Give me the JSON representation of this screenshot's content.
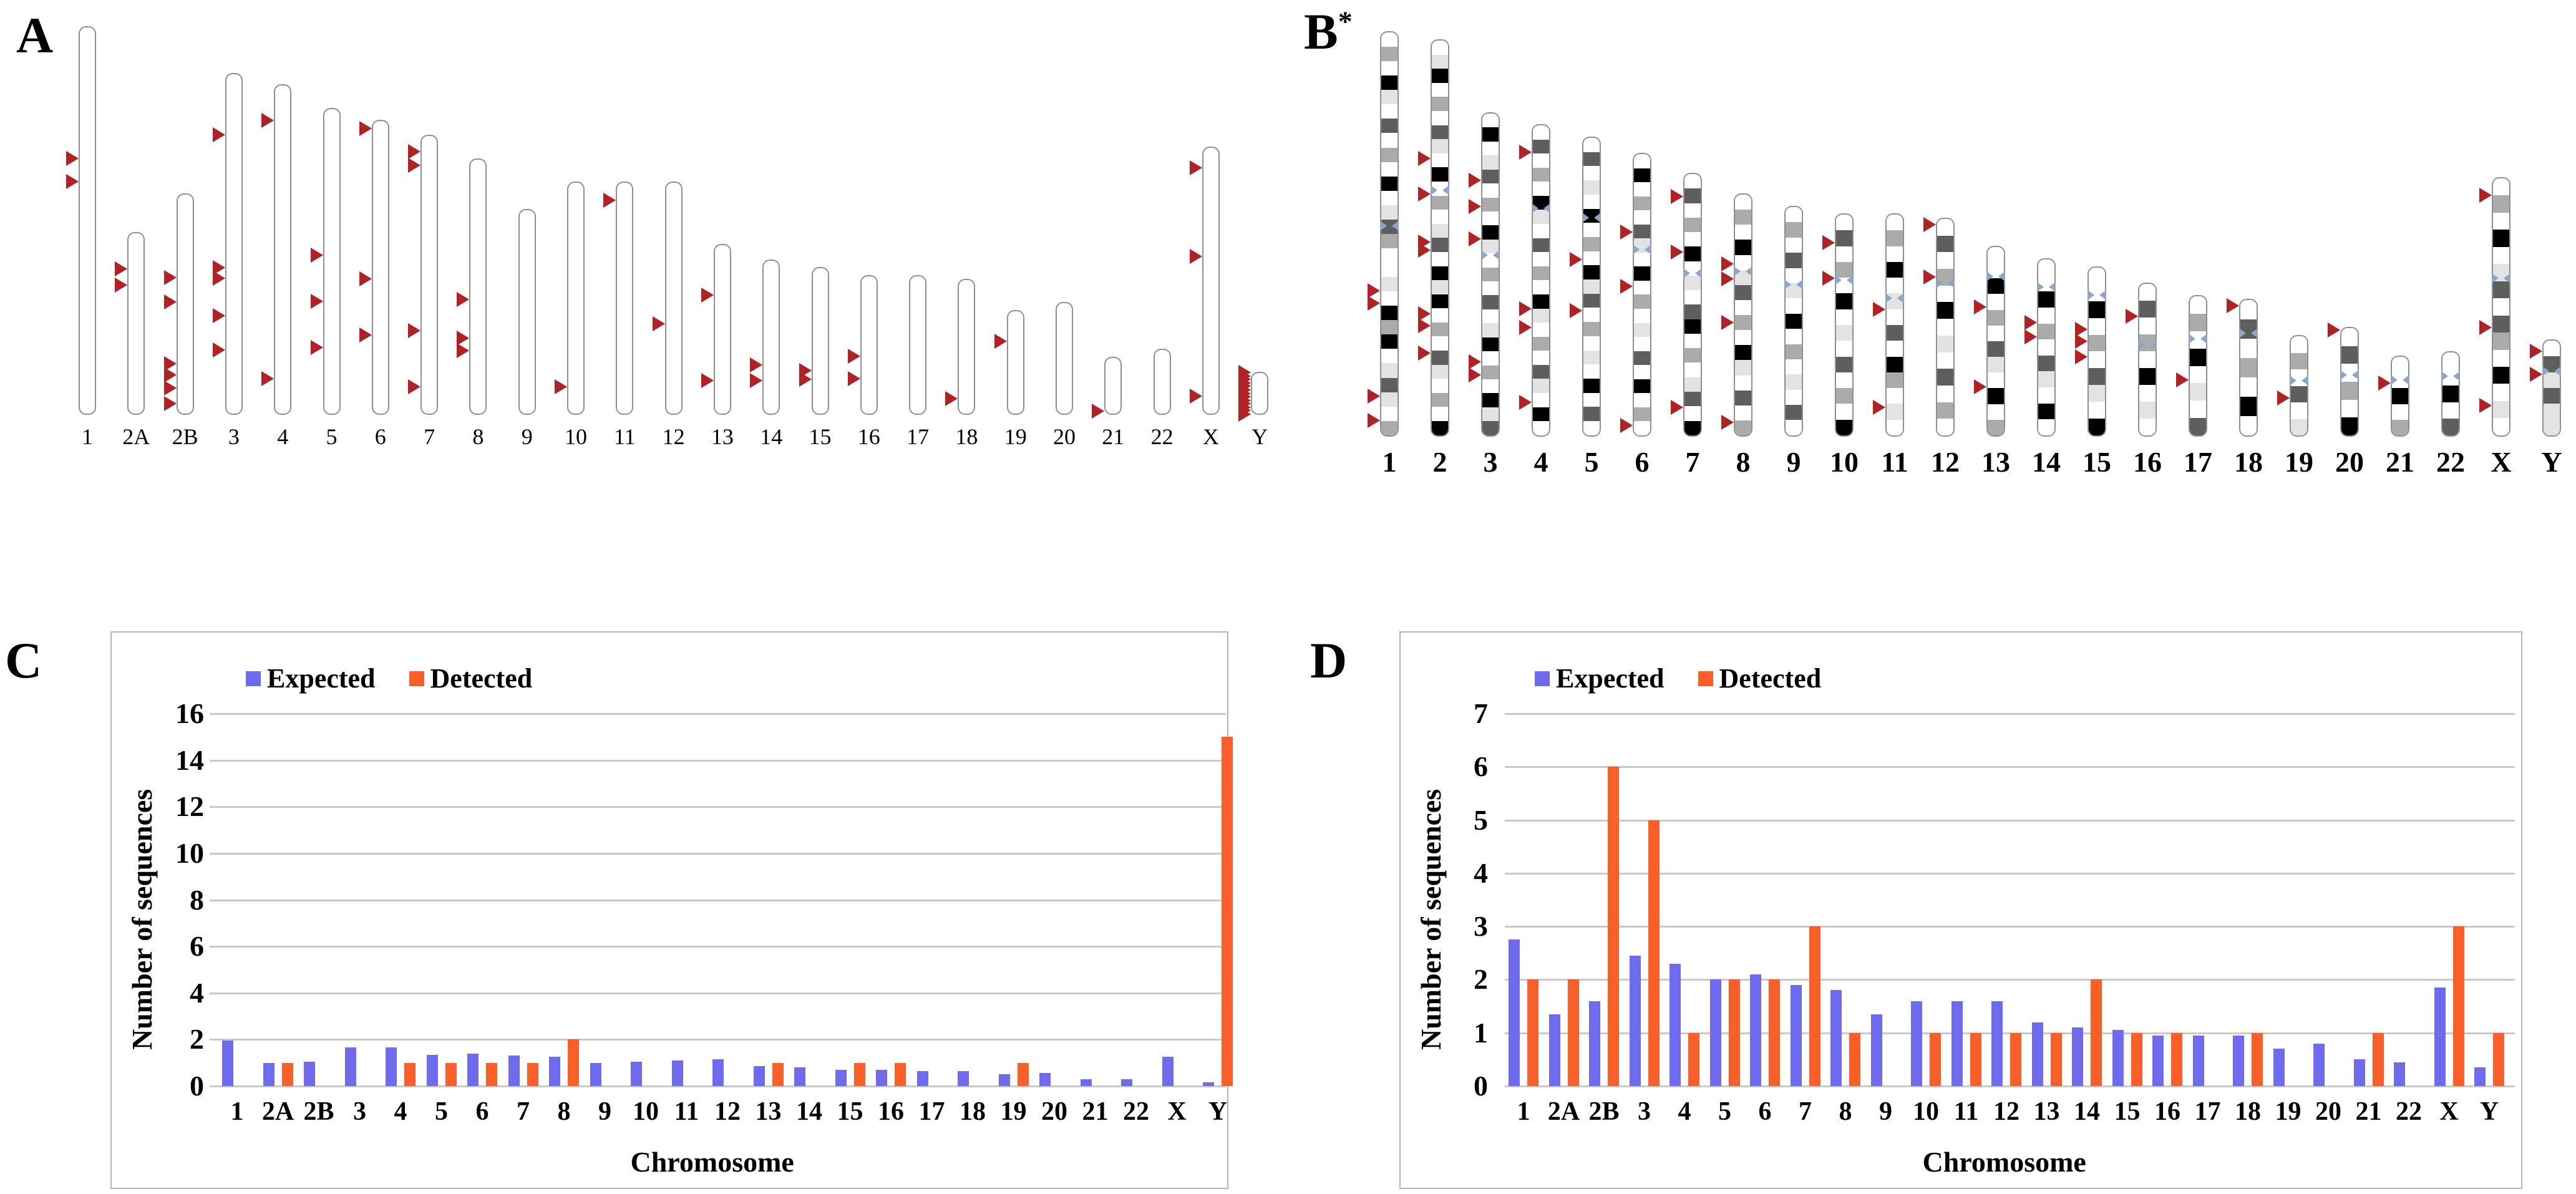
{
  "figure": {
    "panel_a": {
      "label": "A",
      "marker_color": "#b02224",
      "chromosomes": [
        {
          "name": "1",
          "h": 100,
          "arrows": [
            34,
            40
          ]
        },
        {
          "name": "2A",
          "h": 47,
          "arrows": [
            20,
            29
          ]
        },
        {
          "name": "2B",
          "h": 57,
          "arrows": [
            38,
            49,
            77,
            82,
            88,
            95
          ]
        },
        {
          "name": "3",
          "h": 88,
          "arrows": [
            18,
            57,
            60,
            71,
            81
          ]
        },
        {
          "name": "4",
          "h": 85,
          "arrows": [
            11,
            89
          ]
        },
        {
          "name": "5",
          "h": 79,
          "arrows": [
            48,
            63,
            78
          ]
        },
        {
          "name": "6",
          "h": 76,
          "arrows": [
            3,
            54,
            73
          ]
        },
        {
          "name": "7",
          "h": 72,
          "arrows": [
            6,
            11,
            70,
            90
          ]
        },
        {
          "name": "8",
          "h": 66,
          "arrows": [
            55,
            70,
            75
          ]
        },
        {
          "name": "9",
          "h": 53,
          "arrows": []
        },
        {
          "name": "10",
          "h": 60,
          "arrows": [
            88
          ]
        },
        {
          "name": "11",
          "h": 60,
          "arrows": [
            8
          ]
        },
        {
          "name": "12",
          "h": 60,
          "arrows": [
            61
          ]
        },
        {
          "name": "13",
          "h": 44,
          "arrows": [
            30,
            80
          ]
        },
        {
          "name": "14",
          "h": 40,
          "arrows": [
            68,
            78
          ]
        },
        {
          "name": "15",
          "h": 38,
          "arrows": [
            70,
            76
          ]
        },
        {
          "name": "16",
          "h": 36,
          "arrows": [
            58,
            74
          ]
        },
        {
          "name": "17",
          "h": 36,
          "arrows": []
        },
        {
          "name": "18",
          "h": 35,
          "arrows": [
            88
          ]
        },
        {
          "name": "19",
          "h": 27,
          "arrows": [
            30
          ]
        },
        {
          "name": "20",
          "h": 29,
          "arrows": []
        },
        {
          "name": "21",
          "h": 15,
          "arrows": [
            94
          ]
        },
        {
          "name": "22",
          "h": 17,
          "arrows": []
        },
        {
          "name": "X",
          "h": 69,
          "arrows": [
            8,
            41,
            93
          ]
        },
        {
          "name": "Y",
          "h": 11,
          "arrows": [],
          "arrow_stack": 13
        }
      ]
    },
    "panel_b": {
      "label": "B",
      "sup": "*",
      "marker_color": "#b02224",
      "centromere_color": "#8ca6c4",
      "chromosomes": [
        {
          "name": "1",
          "h": 100,
          "cen": 48,
          "bands": "0204103020401320010424013102",
          "arrows": [
            64,
            67,
            90,
            96
          ]
        },
        {
          "name": "2",
          "h": 98,
          "cen": 38,
          "bands": "0140203104020130414020310204",
          "arrows": [
            30,
            39,
            51,
            53,
            69,
            72,
            79
          ]
        },
        {
          "name": "3",
          "h": 80,
          "cen": 44,
          "bands": "04013020410203014020413",
          "arrows": [
            21,
            29,
            39,
            77,
            81
          ]
        },
        {
          "name": "4",
          "h": 77,
          "cen": 27,
          "bands": "0302041030204102031040",
          "arrows": [
            9,
            59,
            65,
            89
          ]
        },
        {
          "name": "5",
          "h": 74,
          "cen": 27,
          "bands": "030104020413020104030",
          "arrows": [
            41,
            58
          ]
        },
        {
          "name": "6",
          "h": 70,
          "cen": 34,
          "bands": "04020310402010304020",
          "arrows": [
            28,
            47,
            96
          ]
        },
        {
          "name": "7",
          "h": 65,
          "cen": 38,
          "bands": "030204010340201304",
          "arrows": [
            9,
            30,
            89
          ]
        },
        {
          "name": "8",
          "h": 60,
          "cen": 32,
          "bands": "0204013020410302",
          "arrows": [
            29,
            35,
            53,
            94
          ]
        },
        {
          "name": "9",
          "h": 57,
          "cen": 34,
          "bands": "020301040201030",
          "arrows": []
        },
        {
          "name": "10",
          "h": 55,
          "cen": 30,
          "bands": "03020401030204",
          "arrows": [
            13,
            29
          ]
        },
        {
          "name": "11",
          "h": 55,
          "cen": 38,
          "bands": "02040103042010",
          "arrows": [
            43,
            87
          ]
        },
        {
          "name": "12",
          "h": 54,
          "cen": 30,
          "bands": "0302040103020",
          "arrows": [
            3,
            27
          ]
        },
        {
          "name": "13",
          "h": 47,
          "cen": 16,
          "bands": "004020310402",
          "arrows": [
            32,
            74
          ]
        },
        {
          "name": "14",
          "h": 44,
          "cen": 16,
          "bands": "00402031040",
          "arrows": [
            36,
            44
          ]
        },
        {
          "name": "15",
          "h": 42,
          "cen": 17,
          "bands": "0040203104",
          "arrows": [
            37,
            44,
            53
          ]
        },
        {
          "name": "16",
          "h": 38,
          "cen": 41,
          "bands": "030204010",
          "arrows": [
            22
          ]
        },
        {
          "name": "17",
          "h": 35,
          "cen": 31,
          "bands": "02040103",
          "arrows": [
            60
          ]
        },
        {
          "name": "18",
          "h": 34,
          "cen": 25,
          "bands": "0302040",
          "arrows": [
            5
          ]
        },
        {
          "name": "19",
          "h": 25,
          "cen": 45,
          "bands": "020301",
          "arrows": [
            62
          ]
        },
        {
          "name": "20",
          "h": 27,
          "cen": 44,
          "bands": "030204",
          "arrows": [
            3
          ]
        },
        {
          "name": "21",
          "h": 20,
          "cen": 30,
          "bands": "00402",
          "arrows": [
            34
          ]
        },
        {
          "name": "22",
          "h": 21,
          "cen": 29,
          "bands": "00403",
          "arrows": []
        },
        {
          "name": "X",
          "h": 64,
          "cen": 39,
          "bands": "020401303204010",
          "arrows": [
            7,
            58,
            88
          ]
        },
        {
          "name": "Y",
          "h": 24,
          "cen": 33,
          "bands": "031311",
          "arrows": [
            12,
            36
          ]
        }
      ]
    }
  },
  "chart_data": [
    {
      "panel_label": "C",
      "type": "bar",
      "categories": [
        "1",
        "2A",
        "2B",
        "3",
        "4",
        "5",
        "6",
        "7",
        "8",
        "9",
        "10",
        "11",
        "12",
        "13",
        "14",
        "15",
        "16",
        "17",
        "18",
        "19",
        "20",
        "21",
        "22",
        "X",
        "Y"
      ],
      "series": [
        {
          "name": "Expected",
          "color": "#6e6bee",
          "values": [
            1.95,
            1.0,
            1.05,
            1.65,
            1.65,
            1.35,
            1.4,
            1.3,
            1.25,
            1.0,
            1.05,
            1.1,
            1.15,
            0.85,
            0.8,
            0.7,
            0.7,
            0.65,
            0.65,
            0.5,
            0.55,
            0.3,
            0.3,
            1.25,
            0.15
          ]
        },
        {
          "name": "Detected",
          "color": "#f95f28",
          "values": [
            0,
            1,
            0,
            0,
            1,
            1,
            1,
            1,
            2,
            0,
            0,
            0,
            0,
            1,
            0,
            1,
            1,
            0,
            0,
            1,
            0,
            0,
            0,
            0,
            15
          ]
        }
      ],
      "xlabel": "Chromosome",
      "ylabel": "Number of sequences",
      "ylim": [
        0,
        16
      ],
      "ytick_step": 2,
      "grid": true,
      "legend_position": "top-left"
    },
    {
      "panel_label": "D",
      "type": "bar",
      "categories": [
        "1",
        "2A",
        "2B",
        "3",
        "4",
        "5",
        "6",
        "7",
        "8",
        "9",
        "10",
        "11",
        "12",
        "13",
        "14",
        "15",
        "16",
        "17",
        "18",
        "19",
        "20",
        "21",
        "22",
        "X",
        "Y"
      ],
      "series": [
        {
          "name": "Expected",
          "color": "#6e6bee",
          "values": [
            2.75,
            1.35,
            1.6,
            2.45,
            2.3,
            2.0,
            2.1,
            1.9,
            1.8,
            1.35,
            1.6,
            1.6,
            1.6,
            1.2,
            1.1,
            1.05,
            0.95,
            0.95,
            0.95,
            0.7,
            0.8,
            0.5,
            0.45,
            1.85,
            0.35
          ]
        },
        {
          "name": "Detected",
          "color": "#f95f28",
          "values": [
            2,
            2,
            6,
            5,
            1,
            2,
            2,
            3,
            1,
            0,
            1,
            1,
            1,
            1,
            2,
            1,
            1,
            0,
            1,
            0,
            0,
            1,
            0,
            3,
            1
          ]
        }
      ],
      "xlabel": "Chromosome",
      "ylabel": "Number of sequences",
      "ylim": [
        0,
        7
      ],
      "ytick_step": 1,
      "grid": true,
      "legend_position": "top-left"
    }
  ],
  "colors": {
    "band_levels": [
      "#ffffff",
      "#e3e3e3",
      "#ababab",
      "#5e5e5e",
      "#000000"
    ],
    "gridline": "#c9c9c9",
    "chart_border": "#b4b4b4",
    "ideogram_outline": "#8f8f8f"
  }
}
